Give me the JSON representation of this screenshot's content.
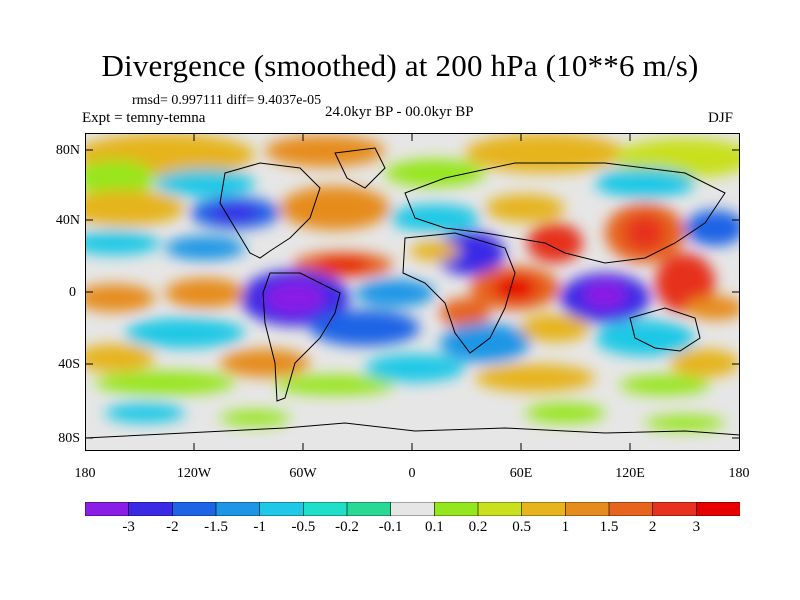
{
  "title": "Divergence (smoothed) at 200 hPa (10**6 m/s)",
  "stats": "rmsd= 0.997111 diff= 9.4037e-05",
  "experiment": "Expt = temny-temna",
  "period": "24.0kyr BP - 00.0kyr BP",
  "season": "DJF",
  "lat_labels": [
    "80N",
    "40N",
    "0",
    "40S",
    "80S"
  ],
  "lon_labels": [
    "180",
    "120W",
    "60W",
    "0",
    "60E",
    "120E",
    "180"
  ],
  "colorbar": {
    "labels": [
      "-3",
      "-2",
      "-1.5",
      "-1",
      "-0.5",
      "-0.2",
      "-0.1",
      "0.1",
      "0.2",
      "0.5",
      "1",
      "1.5",
      "2",
      "3"
    ],
    "colors": [
      "#8a1ee6",
      "#3a2ae6",
      "#1e64e6",
      "#1e96e6",
      "#1ec8e6",
      "#1ee0c8",
      "#2ad896",
      "#e6e6e6",
      "#96e61e",
      "#c8e01e",
      "#e6b41e",
      "#e68c1e",
      "#e6641e",
      "#e6321e",
      "#e60000"
    ]
  }
}
